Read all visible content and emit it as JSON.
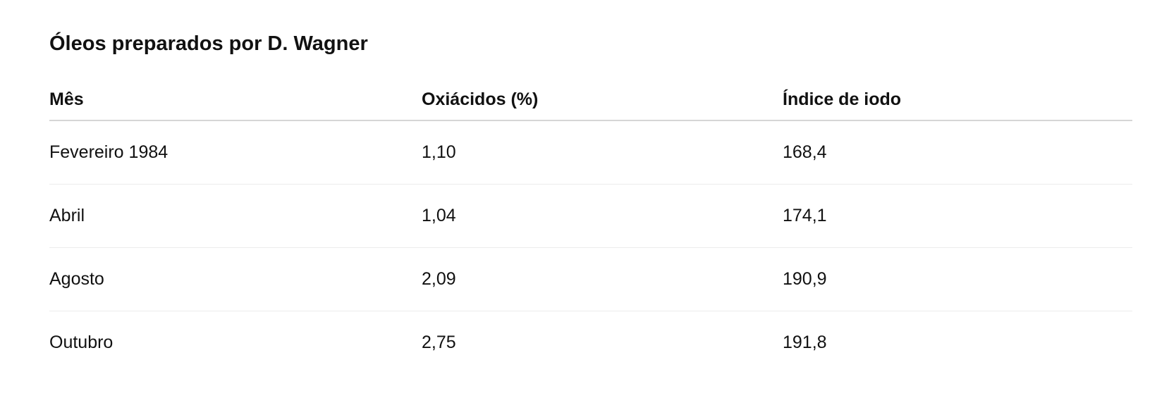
{
  "title": "Óleos preparados por D. Wagner",
  "columns": [
    "Mês",
    "Oxiácidos (%)",
    "Índice de iodo"
  ],
  "rows": [
    [
      "Fevereiro 1984",
      "1,10",
      "168,4"
    ],
    [
      "Abril",
      "1,04",
      "174,1"
    ],
    [
      "Agosto",
      "2,09",
      "190,9"
    ],
    [
      "Outubro",
      "2,75",
      "191,8"
    ]
  ]
}
